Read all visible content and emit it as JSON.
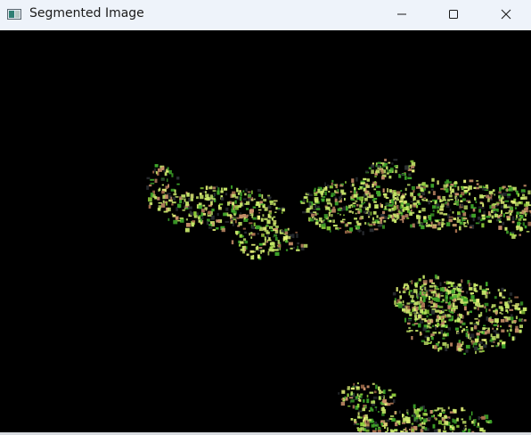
{
  "window": {
    "title": "Segmented Image",
    "icon": "image-viewer-app-icon"
  },
  "controls": {
    "minimize_icon": "minimize-icon",
    "maximize_icon": "maximize-icon",
    "close_icon": "close-icon"
  },
  "colors": {
    "titlebar_bg": "#eef3fa",
    "canvas_bg": "#000000",
    "vegetation_bright": "#c8e86a",
    "vegetation_green": "#3fa62a",
    "soil_tan": "#c9906a",
    "shadow_gray": "#2a2e32"
  }
}
